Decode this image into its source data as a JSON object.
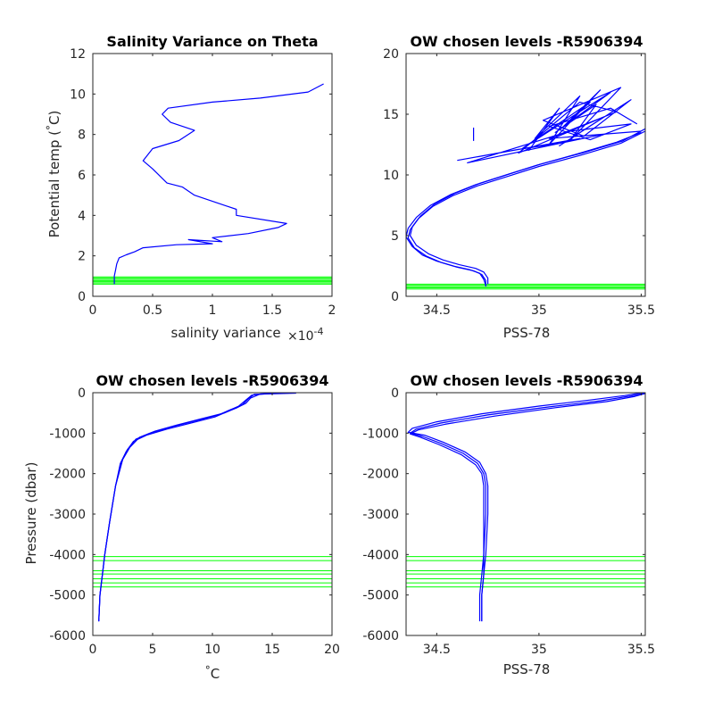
{
  "chart_data": [
    {
      "id": "tl",
      "type": "line",
      "title": "Salinity Variance on Theta",
      "xlabel": "salinity variance",
      "xlabel_multiplier": "×10",
      "xlabel_exponent": "-4",
      "ylabel": "Potential temp (",
      "ylabel_degree": "°",
      "ylabel_unit": "C)",
      "xlim": [
        0,
        2
      ],
      "ylim": [
        0,
        12
      ],
      "xticks": [
        0,
        0.5,
        1,
        1.5,
        2
      ],
      "xtick_labels": [
        "0",
        "0.5",
        "1",
        "1.5",
        "2"
      ],
      "yticks": [
        0,
        2,
        4,
        6,
        8,
        10,
        12
      ],
      "ytick_labels": [
        "0",
        "2",
        "4",
        "6",
        "8",
        "10",
        "12"
      ],
      "series": [
        {
          "color": "#0000ff",
          "x": [
            1.93,
            1.8,
            1.4,
            1.0,
            0.63,
            0.58,
            0.65,
            0.85,
            0.72,
            0.5,
            0.42,
            0.5,
            0.62,
            0.75,
            0.85,
            1.2,
            1.2,
            1.62,
            1.55,
            1.3,
            1.0,
            1.08,
            0.8,
            1.0,
            0.7,
            0.42,
            0.35,
            0.28,
            0.22,
            0.2,
            0.19,
            0.18,
            0.18
          ],
          "y": [
            10.5,
            10.1,
            9.8,
            9.6,
            9.3,
            9.0,
            8.6,
            8.2,
            7.7,
            7.3,
            6.7,
            6.3,
            5.6,
            5.4,
            5.0,
            4.3,
            4.0,
            3.6,
            3.4,
            3.1,
            2.9,
            2.7,
            2.8,
            2.6,
            2.55,
            2.4,
            2.2,
            2.05,
            1.9,
            1.6,
            1.3,
            1.0,
            0.6
          ]
        }
      ],
      "hlines": [
        0.6,
        0.66,
        0.72,
        0.78,
        0.84,
        0.9,
        0.96
      ],
      "hline_color": "#00ff00"
    },
    {
      "id": "tr",
      "type": "line",
      "title": "OW chosen levels -R5906394",
      "xlabel": "PSS-78",
      "ylabel": "",
      "xlim": [
        34.35,
        35.52
      ],
      "ylim": [
        0,
        20
      ],
      "xticks": [
        34.5,
        35,
        35.5
      ],
      "xtick_labels": [
        "34.5",
        "35",
        "35.5"
      ],
      "yticks": [
        0,
        5,
        10,
        15,
        20
      ],
      "ytick_labels": [
        "0",
        "5",
        "10",
        "15",
        "20"
      ],
      "series": [
        {
          "color": "#0000ff",
          "x": [
            34.74,
            34.74,
            34.72,
            34.68,
            34.6,
            34.52,
            34.45,
            34.39,
            34.36,
            34.37,
            34.41,
            34.48,
            34.58,
            34.7,
            34.85,
            35.0,
            35.2,
            35.4,
            35.52
          ],
          "y": [
            0.8,
            1.3,
            1.8,
            2.1,
            2.4,
            2.8,
            3.3,
            4.0,
            4.8,
            5.5,
            6.4,
            7.4,
            8.3,
            9.1,
            9.9,
            10.7,
            11.6,
            12.6,
            13.6
          ]
        },
        {
          "color": "#0000ff",
          "x": [
            34.74,
            34.73,
            34.71,
            34.66,
            34.58,
            34.5,
            34.43,
            34.38,
            34.35,
            34.36,
            34.4,
            34.47,
            34.57,
            34.69,
            34.84,
            34.99,
            35.18,
            35.38,
            35.5
          ],
          "y": [
            0.9,
            1.4,
            1.9,
            2.2,
            2.5,
            2.9,
            3.4,
            4.1,
            4.9,
            5.6,
            6.5,
            7.5,
            8.4,
            9.2,
            10.0,
            10.8,
            11.7,
            12.7,
            13.5
          ]
        },
        {
          "color": "#0000ff",
          "x": [
            34.75,
            34.75,
            34.73,
            34.69,
            34.61,
            34.53,
            34.46,
            34.4,
            34.37,
            34.38,
            34.42,
            34.49,
            34.59,
            34.71,
            34.86,
            35.01,
            35.21,
            35.41,
            35.52
          ],
          "y": [
            1.0,
            1.5,
            2.0,
            2.3,
            2.6,
            3.0,
            3.5,
            4.2,
            5.0,
            5.7,
            6.6,
            7.6,
            8.5,
            9.3,
            10.1,
            10.9,
            11.8,
            12.8,
            13.8
          ]
        },
        {
          "color": "#0000ff",
          "x": [
            34.95,
            35.1,
            34.98,
            35.2,
            35.05,
            35.3,
            35.12,
            35.25,
            34.92,
            35.18,
            35.35,
            35.08,
            35.28,
            35.15,
            35.4,
            35.02,
            35.22,
            35.45,
            35.1,
            35.32,
            34.9,
            35.2,
            35.38,
            35.05,
            35.5
          ],
          "y": [
            12.0,
            15.5,
            13.0,
            16.5,
            12.5,
            17.0,
            14.0,
            16.0,
            12.2,
            15.0,
            16.8,
            13.5,
            15.8,
            12.8,
            17.2,
            14.5,
            13.2,
            16.2,
            12.4,
            14.8,
            11.8,
            16.0,
            15.2,
            13.0,
            13.6
          ]
        },
        {
          "color": "#0000ff",
          "x": [
            34.6,
            34.8,
            35.0,
            35.2,
            34.7,
            34.9,
            35.1,
            35.3,
            34.65,
            35.15,
            35.45,
            35.25,
            35.05,
            35.35,
            35.48
          ],
          "y": [
            11.2,
            11.8,
            12.4,
            13.0,
            11.5,
            12.1,
            12.6,
            13.3,
            11.0,
            13.6,
            14.2,
            12.9,
            14.0,
            15.5,
            14.2
          ]
        },
        {
          "color": "#0000ff",
          "x": [
            34.68,
            34.68
          ],
          "y": [
            13.9,
            12.8
          ]
        }
      ],
      "hlines": [
        0.6,
        0.7,
        0.8,
        0.9,
        1.0
      ],
      "hline_color": "#00ff00"
    },
    {
      "id": "bl",
      "type": "line",
      "title": "OW chosen levels -R5906394",
      "xlabel": "C",
      "xlabel_degree": "°",
      "ylabel": "Pressure (dbar)",
      "xlim": [
        0,
        20
      ],
      "ylim": [
        -6000,
        0
      ],
      "xticks": [
        0,
        5,
        10,
        15,
        20
      ],
      "xtick_labels": [
        "0",
        "5",
        "10",
        "15",
        "20"
      ],
      "yticks": [
        -6000,
        -5000,
        -4000,
        -3000,
        -2000,
        -1000,
        0
      ],
      "ytick_labels": [
        "-6000",
        "-5000",
        "-4000",
        "-3000",
        "-2000",
        "-1000",
        "0"
      ],
      "series": [
        {
          "color": "#0000ff",
          "x": [
            0.5,
            0.6,
            0.8,
            1.0,
            1.4,
            1.9,
            2.4,
            2.9,
            3.6,
            4.8,
            6.5,
            8.5,
            10.5,
            11.5,
            12.5,
            13.0,
            13.5,
            17.0
          ],
          "y": [
            -5650,
            -5000,
            -4500,
            -4000,
            -3200,
            -2300,
            -1700,
            -1400,
            -1150,
            -1000,
            -850,
            -700,
            -550,
            -420,
            -300,
            -150,
            -40,
            -10
          ]
        },
        {
          "color": "#0000ff",
          "x": [
            0.5,
            0.6,
            0.8,
            1.0,
            1.4,
            1.9,
            2.5,
            3.1,
            3.9,
            5.2,
            7.0,
            9.0,
            11.0,
            12.0,
            12.8,
            13.2,
            14.0,
            16.0
          ],
          "y": [
            -5650,
            -5000,
            -4500,
            -4000,
            -3200,
            -2300,
            -1650,
            -1350,
            -1100,
            -950,
            -800,
            -650,
            -500,
            -380,
            -260,
            -130,
            -30,
            -5
          ]
        },
        {
          "color": "#0000ff",
          "x": [
            0.5,
            0.6,
            0.8,
            1.0,
            1.4,
            1.9,
            2.3,
            2.8,
            3.4,
            4.5,
            6.2,
            8.2,
            10.2,
            11.3,
            12.2,
            12.8,
            13.3,
            15.0
          ],
          "y": [
            -5650,
            -5000,
            -4500,
            -4000,
            -3200,
            -2300,
            -1750,
            -1450,
            -1200,
            -1050,
            -900,
            -750,
            -600,
            -460,
            -330,
            -180,
            -60,
            -15
          ]
        }
      ],
      "hlines": [
        -4050,
        -4150,
        -4400,
        -4480,
        -4600,
        -4700,
        -4800
      ],
      "hline_color": "#00ff00"
    },
    {
      "id": "br",
      "type": "line",
      "title": "OW chosen levels -R5906394",
      "xlabel": "PSS-78",
      "ylabel": "",
      "xlim": [
        34.35,
        35.52
      ],
      "ylim": [
        -6000,
        0
      ],
      "xticks": [
        34.5,
        35,
        35.5
      ],
      "xtick_labels": [
        "34.5",
        "35",
        "35.5"
      ],
      "yticks": [
        -6000,
        -5000,
        -4000,
        -3000,
        -2000,
        -1000,
        0
      ],
      "ytick_labels": [
        "-6000",
        "-5000",
        "-4000",
        "-3000",
        "-2000",
        "-1000",
        "0"
      ],
      "series": [
        {
          "color": "#0000ff",
          "x": [
            34.72,
            34.72,
            34.73,
            34.73,
            34.74,
            34.74,
            34.73,
            34.7,
            34.63,
            34.52,
            34.43,
            34.37,
            34.4,
            34.52,
            34.75,
            35.05,
            35.3,
            35.45,
            35.52
          ],
          "y": [
            -5650,
            -5000,
            -4500,
            -4000,
            -3000,
            -2300,
            -2000,
            -1750,
            -1500,
            -1250,
            -1080,
            -1000,
            -900,
            -750,
            -550,
            -350,
            -200,
            -80,
            -10
          ]
        },
        {
          "color": "#0000ff",
          "x": [
            34.72,
            34.72,
            34.73,
            34.74,
            34.75,
            34.75,
            34.74,
            34.71,
            34.64,
            34.53,
            34.44,
            34.36,
            34.38,
            34.5,
            34.72,
            35.0,
            35.25,
            35.42,
            35.5
          ],
          "y": [
            -5650,
            -5000,
            -4500,
            -4000,
            -3000,
            -2300,
            -2000,
            -1720,
            -1470,
            -1220,
            -1050,
            -980,
            -880,
            -720,
            -520,
            -330,
            -180,
            -70,
            -5
          ]
        },
        {
          "color": "#0000ff",
          "x": [
            34.71,
            34.71,
            34.72,
            34.73,
            34.73,
            34.73,
            34.72,
            34.69,
            34.62,
            34.51,
            34.42,
            34.37,
            34.41,
            34.54,
            34.78,
            35.08,
            35.33,
            35.47,
            35.52
          ],
          "y": [
            -5650,
            -5000,
            -4500,
            -4000,
            -3000,
            -2300,
            -2000,
            -1780,
            -1530,
            -1280,
            -1100,
            -1020,
            -920,
            -780,
            -580,
            -370,
            -220,
            -90,
            -20
          ]
        }
      ],
      "hlines": [
        -4050,
        -4150,
        -4400,
        -4480,
        -4600,
        -4700,
        -4800
      ],
      "hline_color": "#00ff00"
    }
  ]
}
